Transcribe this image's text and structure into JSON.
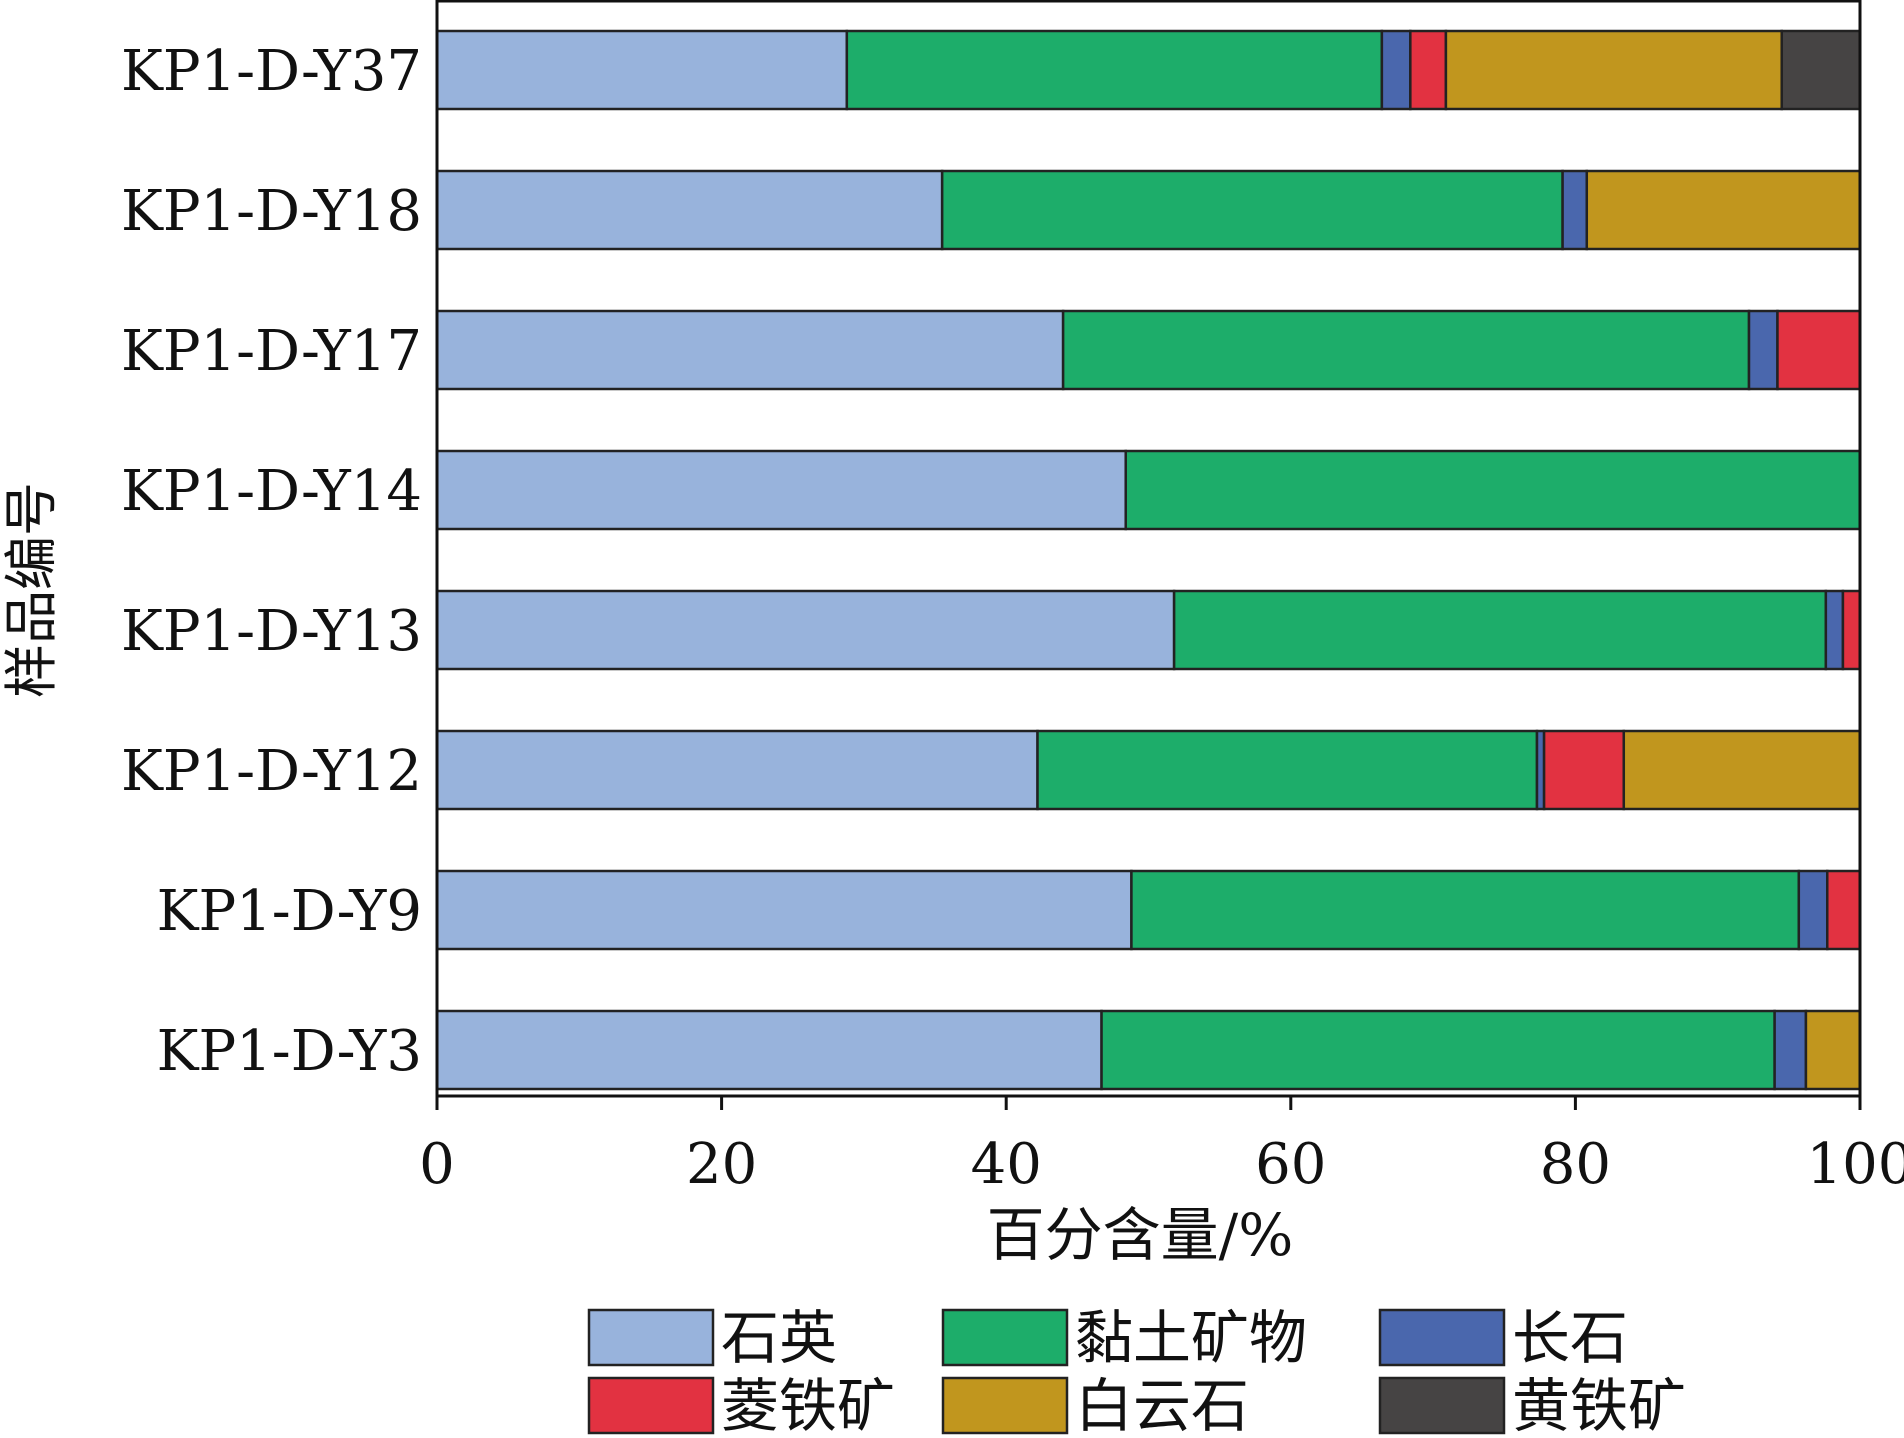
{
  "chart_data": {
    "type": "bar",
    "orientation": "horizontal",
    "stacked": true,
    "xlabel": "百分含量/%",
    "ylabel": "样品编号",
    "xlim": [
      0,
      100
    ],
    "xticks": [
      "0",
      "20",
      "40",
      "60",
      "80",
      "100"
    ],
    "categories": [
      "KP1-D-Y37",
      "KP1-D-Y18",
      "KP1-D-Y17",
      "KP1-D-Y14",
      "KP1-D-Y13",
      "KP1-D-Y12",
      "KP1-D-Y9",
      "KP1-D-Y3"
    ],
    "series": [
      {
        "name": "石英",
        "color": "#98b3dc",
        "values": [
          28.8,
          35.5,
          44.0,
          48.4,
          51.8,
          42.2,
          48.8,
          46.7
        ]
      },
      {
        "name": "黏土矿物",
        "color": "#1dad6a",
        "values": [
          37.6,
          43.6,
          48.2,
          51.6,
          45.8,
          35.1,
          46.9,
          47.3
        ]
      },
      {
        "name": "长石",
        "color": "#4a67ad",
        "values": [
          2.0,
          1.7,
          2.0,
          0,
          1.2,
          0.5,
          2.0,
          2.2
        ]
      },
      {
        "name": "菱铁矿",
        "color": "#e23241",
        "values": [
          2.5,
          0,
          5.8,
          0,
          1.2,
          5.6,
          2.3,
          0
        ]
      },
      {
        "name": "白云石",
        "color": "#c1961e",
        "values": [
          23.6,
          19.2,
          0,
          0,
          0,
          16.6,
          0,
          3.8
        ]
      },
      {
        "name": "黄铁矿",
        "color": "#464444",
        "values": [
          5.5,
          0,
          0,
          0,
          0,
          0,
          0,
          0
        ]
      }
    ],
    "legend_position": "bottom",
    "grid": false
  }
}
